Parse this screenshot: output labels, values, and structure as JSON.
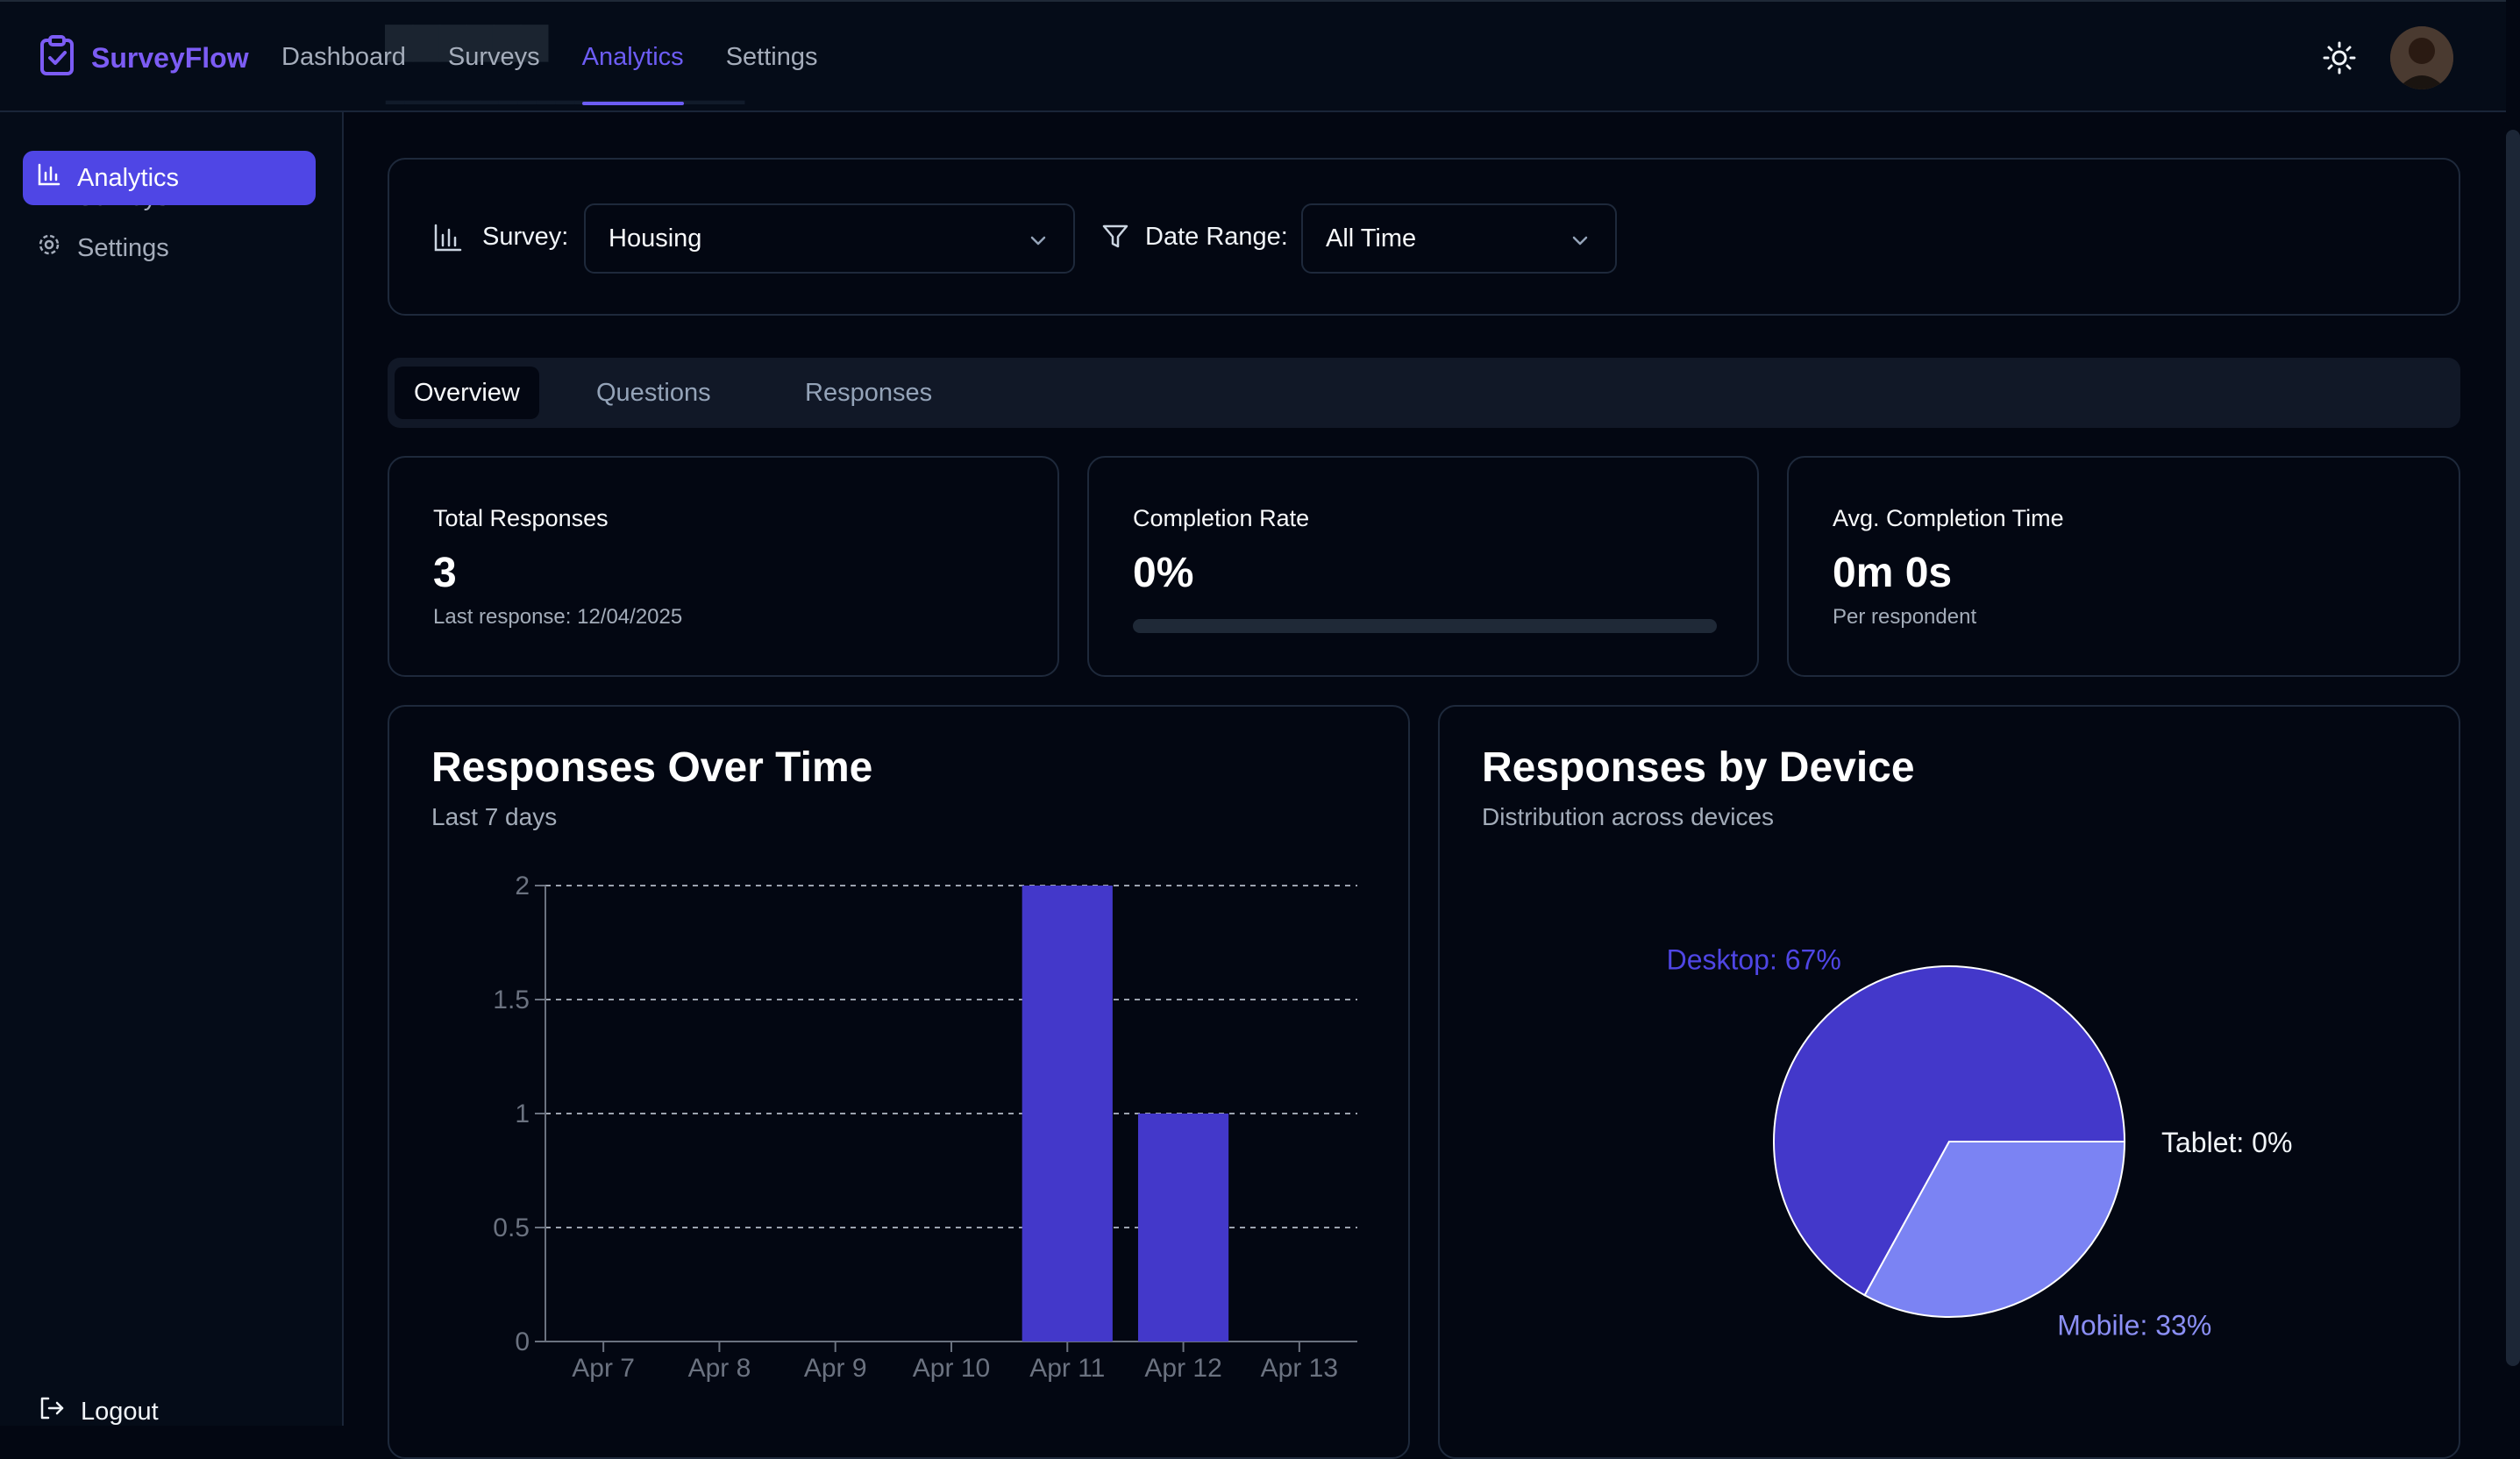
{
  "app": {
    "name": "SurveyFlow"
  },
  "nav": {
    "items": [
      {
        "label": "Dashboard"
      },
      {
        "label": "Surveys"
      },
      {
        "label": "Analytics"
      },
      {
        "label": "Settings"
      }
    ],
    "active": "Analytics"
  },
  "sidebar": {
    "items": [
      {
        "label": "Surveys",
        "icon": "file-icon"
      },
      {
        "label": "Analytics",
        "icon": "bar-chart-icon"
      },
      {
        "label": "Settings",
        "icon": "gear-icon"
      }
    ],
    "active": "Analytics",
    "logout_label": "Logout"
  },
  "filters": {
    "survey_label": "Survey:",
    "survey_value": "Housing",
    "date_label": "Date Range:",
    "date_value": "All Time"
  },
  "tabs": [
    {
      "label": "Overview"
    },
    {
      "label": "Questions"
    },
    {
      "label": "Responses"
    }
  ],
  "active_tab": "Overview",
  "stats": {
    "total": {
      "title": "Total Responses",
      "value": "3",
      "sub": "Last response: 12/04/2025"
    },
    "completion": {
      "title": "Completion Rate",
      "value": "0%",
      "progress": 0
    },
    "avg_time": {
      "title": "Avg. Completion Time",
      "value": "0m 0s",
      "sub": "Per respondent"
    }
  },
  "colors": {
    "accent": "#4f46e5",
    "bar": "#4338ca",
    "pie_desktop": "#4338ca",
    "pie_mobile": "#7b83f3",
    "desktop_label": "#4f46e5",
    "mobile_label": "#8b8ff5"
  },
  "charts": {
    "responses_over_time": {
      "title": "Responses Over Time",
      "subtitle": "Last 7 days"
    },
    "responses_by_device": {
      "title": "Responses by Device",
      "subtitle": "Distribution across devices"
    }
  },
  "chart_data": [
    {
      "type": "bar",
      "title": "Responses Over Time",
      "subtitle": "Last 7 days",
      "categories": [
        "Apr 7",
        "Apr 8",
        "Apr 9",
        "Apr 10",
        "Apr 11",
        "Apr 12",
        "Apr 13"
      ],
      "values": [
        0,
        0,
        0,
        0,
        2,
        1,
        0
      ],
      "yticks": [
        "0",
        "0.5",
        "1",
        "1.5",
        "2"
      ],
      "ylim": [
        0,
        2
      ],
      "grid": true
    },
    {
      "type": "pie",
      "title": "Responses by Device",
      "subtitle": "Distribution across devices",
      "slices": [
        {
          "label": "Desktop: 67%",
          "value": 67
        },
        {
          "label": "Mobile: 33%",
          "value": 33
        },
        {
          "label": "Tablet: 0%",
          "value": 0
        }
      ]
    }
  ]
}
